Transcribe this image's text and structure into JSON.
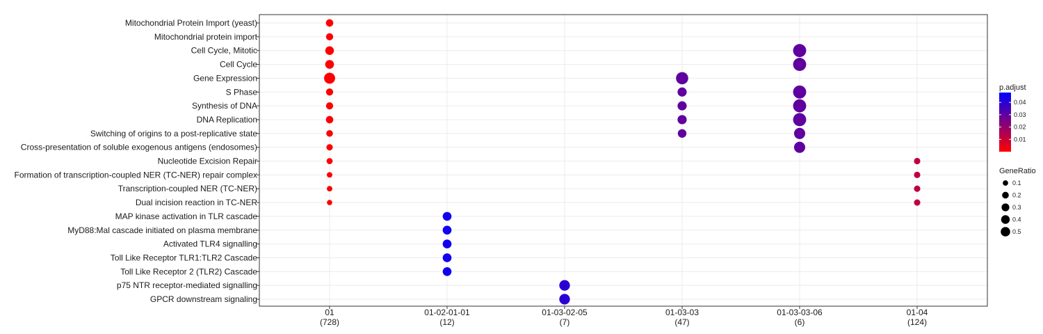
{
  "chart_data": {
    "type": "scatter",
    "x_categories": [
      {
        "id": "01",
        "count": "(728)"
      },
      {
        "id": "01-02-01-01",
        "count": "(12)"
      },
      {
        "id": "01-03-02-05",
        "count": "(7)"
      },
      {
        "id": "01-03-03",
        "count": "(47)"
      },
      {
        "id": "01-03-03-06",
        "count": "(6)"
      },
      {
        "id": "01-04",
        "count": "(124)"
      }
    ],
    "y_categories": [
      "Mitochondrial Protein Import (yeast)",
      "Mitochondrial protein import",
      "Cell Cycle, Mitotic",
      "Cell Cycle",
      "Gene Expression",
      "S Phase",
      "Synthesis of DNA",
      "DNA Replication",
      "Switching of origins to a post-replicative state",
      "Cross-presentation of soluble exogenous antigens (endosomes)",
      "Nucleotide Excision Repair",
      "Formation of transcription-coupled NER (TC-NER) repair complex",
      "Transcription-coupled NER (TC-NER)",
      "Dual incision reaction in TC-NER",
      "MAP kinase activation in TLR cascade",
      "MyD88:Mal cascade initiated on plasma membrane",
      "Activated TLR4 signalling",
      "Toll Like Receptor TLR1:TLR2 Cascade",
      "Toll Like Receptor 2 (TLR2) Cascade",
      "p75 NTR receptor-mediated signalling",
      "GPCR downstream signaling"
    ],
    "points": [
      {
        "x": "01",
        "y": "Mitochondrial Protein Import (yeast)",
        "gene_ratio": 0.1,
        "p_adjust": 0.0005
      },
      {
        "x": "01",
        "y": "Mitochondrial protein import",
        "gene_ratio": 0.09,
        "p_adjust": 0.0005
      },
      {
        "x": "01",
        "y": "Cell Cycle, Mitotic",
        "gene_ratio": 0.16,
        "p_adjust": 0.0005
      },
      {
        "x": "01",
        "y": "Cell Cycle",
        "gene_ratio": 0.17,
        "p_adjust": 0.0005
      },
      {
        "x": "01",
        "y": "Gene Expression",
        "gene_ratio": 0.32,
        "p_adjust": 0.0005
      },
      {
        "x": "01",
        "y": "S Phase",
        "gene_ratio": 0.09,
        "p_adjust": 0.0005
      },
      {
        "x": "01",
        "y": "Synthesis of DNA",
        "gene_ratio": 0.09,
        "p_adjust": 0.0005
      },
      {
        "x": "01",
        "y": "DNA Replication",
        "gene_ratio": 0.1,
        "p_adjust": 0.0005
      },
      {
        "x": "01",
        "y": "Switching of origins to a post-replicative state",
        "gene_ratio": 0.07,
        "p_adjust": 0.0005
      },
      {
        "x": "01",
        "y": "Cross-presentation of soluble exogenous antigens (endosomes)",
        "gene_ratio": 0.06,
        "p_adjust": 0.0005
      },
      {
        "x": "01",
        "y": "Nucleotide Excision Repair",
        "gene_ratio": 0.05,
        "p_adjust": 0.0005
      },
      {
        "x": "01",
        "y": "Formation of transcription-coupled NER (TC-NER) repair complex",
        "gene_ratio": 0.035,
        "p_adjust": 0.0005
      },
      {
        "x": "01",
        "y": "Transcription-coupled NER (TC-NER)",
        "gene_ratio": 0.035,
        "p_adjust": 0.0005
      },
      {
        "x": "01",
        "y": "Dual incision reaction in TC-NER",
        "gene_ratio": 0.03,
        "p_adjust": 0.0005
      },
      {
        "x": "01-02-01-01",
        "y": "MAP kinase activation in TLR cascade",
        "gene_ratio": 0.17,
        "p_adjust": 0.045
      },
      {
        "x": "01-02-01-01",
        "y": "MyD88:Mal cascade initiated on plasma membrane",
        "gene_ratio": 0.17,
        "p_adjust": 0.045
      },
      {
        "x": "01-02-01-01",
        "y": "Activated TLR4 signalling",
        "gene_ratio": 0.17,
        "p_adjust": 0.045
      },
      {
        "x": "01-02-01-01",
        "y": "Toll Like Receptor TLR1:TLR2 Cascade",
        "gene_ratio": 0.17,
        "p_adjust": 0.045
      },
      {
        "x": "01-02-01-01",
        "y": "Toll Like Receptor 2 (TLR2) Cascade",
        "gene_ratio": 0.17,
        "p_adjust": 0.045
      },
      {
        "x": "01-03-02-05",
        "y": "p75 NTR receptor-mediated signalling",
        "gene_ratio": 0.29,
        "p_adjust": 0.04
      },
      {
        "x": "01-03-02-05",
        "y": "GPCR downstream signaling",
        "gene_ratio": 0.29,
        "p_adjust": 0.04
      },
      {
        "x": "01-03-03",
        "y": "Gene Expression",
        "gene_ratio": 0.42,
        "p_adjust": 0.03
      },
      {
        "x": "01-03-03",
        "y": "S Phase",
        "gene_ratio": 0.19,
        "p_adjust": 0.03
      },
      {
        "x": "01-03-03",
        "y": "Synthesis of DNA",
        "gene_ratio": 0.19,
        "p_adjust": 0.03
      },
      {
        "x": "01-03-03",
        "y": "DNA Replication",
        "gene_ratio": 0.19,
        "p_adjust": 0.03
      },
      {
        "x": "01-03-03",
        "y": "Switching of origins to a post-replicative state",
        "gene_ratio": 0.16,
        "p_adjust": 0.03
      },
      {
        "x": "01-03-03-06",
        "y": "Cell Cycle, Mitotic",
        "gene_ratio": 0.5,
        "p_adjust": 0.03
      },
      {
        "x": "01-03-03-06",
        "y": "Cell Cycle",
        "gene_ratio": 0.5,
        "p_adjust": 0.03
      },
      {
        "x": "01-03-03-06",
        "y": "S Phase",
        "gene_ratio": 0.5,
        "p_adjust": 0.03
      },
      {
        "x": "01-03-03-06",
        "y": "Synthesis of DNA",
        "gene_ratio": 0.5,
        "p_adjust": 0.03
      },
      {
        "x": "01-03-03-06",
        "y": "DNA Replication",
        "gene_ratio": 0.5,
        "p_adjust": 0.03
      },
      {
        "x": "01-03-03-06",
        "y": "Switching of origins to a post-replicative state",
        "gene_ratio": 0.33,
        "p_adjust": 0.03
      },
      {
        "x": "01-03-03-06",
        "y": "Cross-presentation of soluble exogenous antigens (endosomes)",
        "gene_ratio": 0.33,
        "p_adjust": 0.03
      },
      {
        "x": "01-04",
        "y": "Nucleotide Excision Repair",
        "gene_ratio": 0.06,
        "p_adjust": 0.012
      },
      {
        "x": "01-04",
        "y": "Formation of transcription-coupled NER (TC-NER) repair complex",
        "gene_ratio": 0.06,
        "p_adjust": 0.012
      },
      {
        "x": "01-04",
        "y": "Transcription-coupled NER (TC-NER)",
        "gene_ratio": 0.06,
        "p_adjust": 0.012
      },
      {
        "x": "01-04",
        "y": "Dual incision reaction in TC-NER",
        "gene_ratio": 0.06,
        "p_adjust": 0.012
      }
    ],
    "color_legend": {
      "title": "p.adjust",
      "ticks": [
        "0.04",
        "0.03",
        "0.02",
        "0.01"
      ],
      "tick_values": [
        0.04,
        0.03,
        0.02,
        0.01
      ],
      "range": [
        0,
        0.048
      ],
      "low_color": "#ff0000",
      "high_color": "#0000ff"
    },
    "size_legend": {
      "title": "GeneRatio",
      "ticks": [
        "0.1",
        "0.2",
        "0.3",
        "0.4",
        "0.5"
      ],
      "tick_values": [
        0.1,
        0.2,
        0.3,
        0.4,
        0.5
      ]
    },
    "grid": true,
    "legend_position": "right"
  }
}
